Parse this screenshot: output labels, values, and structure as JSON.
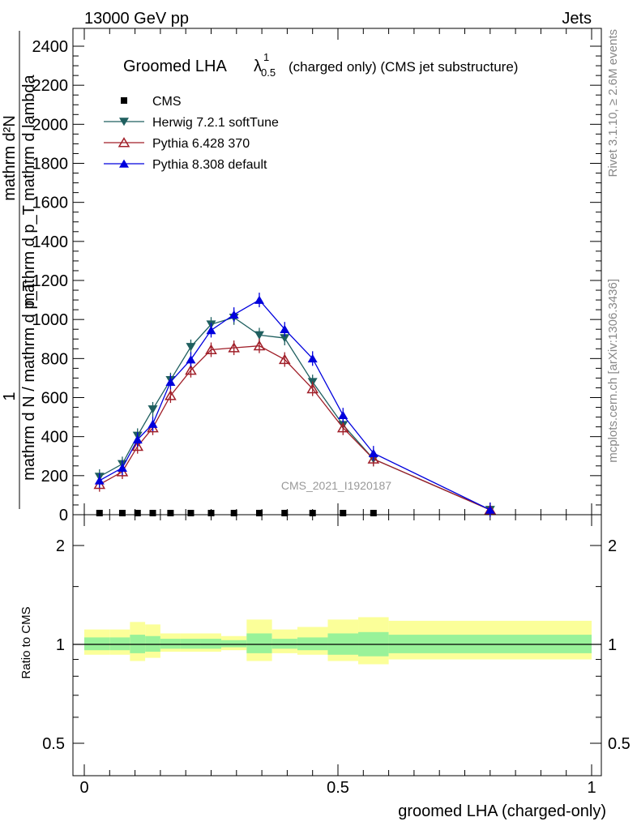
{
  "header": {
    "energy": "13000 GeV pp",
    "process": "Jets",
    "rivet_version": "Rivet 3.1.10, ≥ 2.6M events",
    "source": "mcplots.cern.ch [arXiv:1306.3436]",
    "analysis_id": "CMS_2021_I1920187"
  },
  "chart_data": {
    "type": "line",
    "title": "Groomed LHA",
    "title_symbol": "λ",
    "title_sup": "1",
    "title_sub": "0.5",
    "title_suffix": "(charged only) (CMS jet substructure)",
    "ylabel_top": "mathrm d²N",
    "ylabel_lines": [
      "mathrm d p_T mathrm d lambda",
      "mathrm d N / mathrm d p_T"
    ],
    "ylabel_frac_prefix": "1",
    "xlabel": "groomed LHA (charged-only)",
    "ratio_ylabel": "Ratio to CMS",
    "xlim": [
      0,
      1
    ],
    "ylim": [
      0,
      2500
    ],
    "ratio_ylim": [
      0.4,
      2.4
    ],
    "yticks": [
      0,
      200,
      400,
      600,
      800,
      1000,
      1200,
      1400,
      1600,
      1800,
      2000,
      2200,
      2400
    ],
    "xticks": [
      {
        "v": 0,
        "label": "0"
      },
      {
        "v": 0.5,
        "label": "0.5"
      },
      {
        "v": 1,
        "label": "1"
      }
    ],
    "ratio_ticks": [
      {
        "v": 0.5,
        "label": "0.5"
      },
      {
        "v": 1,
        "label": "1"
      },
      {
        "v": 2,
        "label": "2"
      }
    ],
    "legend_position": "top-left",
    "series": [
      {
        "name": "CMS",
        "marker": "square",
        "color": "#000000",
        "x": [
          0.03,
          0.075,
          0.105,
          0.135,
          0.17,
          0.21,
          0.25,
          0.295,
          0.345,
          0.395,
          0.45,
          0.51,
          0.57
        ],
        "y": [
          0,
          0,
          0,
          0,
          0,
          0,
          0,
          0,
          0,
          0,
          0,
          0,
          0
        ]
      },
      {
        "name": "Herwig 7.2.1 softTune",
        "marker": "triangle-down",
        "color": "#1f5f5f",
        "x": [
          0.03,
          0.075,
          0.105,
          0.135,
          0.17,
          0.21,
          0.25,
          0.295,
          0.345,
          0.395,
          0.45,
          0.51,
          0.57,
          0.8
        ],
        "y": [
          195,
          260,
          405,
          540,
          690,
          860,
          975,
          1010,
          920,
          905,
          680,
          460,
          285,
          25
        ]
      },
      {
        "name": "Pythia 6.428 370",
        "marker": "triangle-up-open",
        "color": "#a01e28",
        "x": [
          0.03,
          0.075,
          0.105,
          0.135,
          0.17,
          0.21,
          0.25,
          0.295,
          0.345,
          0.395,
          0.45,
          0.51,
          0.57,
          0.8
        ],
        "y": [
          155,
          220,
          350,
          445,
          610,
          740,
          845,
          855,
          865,
          795,
          645,
          445,
          285,
          25
        ]
      },
      {
        "name": "Pythia 8.308 default",
        "marker": "triangle-up",
        "color": "#0000dd",
        "x": [
          0.03,
          0.075,
          0.105,
          0.135,
          0.17,
          0.21,
          0.25,
          0.295,
          0.345,
          0.395,
          0.45,
          0.51,
          0.57,
          0.8
        ],
        "y": [
          175,
          240,
          385,
          465,
          680,
          795,
          945,
          1025,
          1100,
          950,
          800,
          510,
          315,
          25
        ]
      }
    ],
    "ratio_bands": {
      "edges": [
        0.0,
        0.05,
        0.09,
        0.12,
        0.15,
        0.19,
        0.23,
        0.27,
        0.32,
        0.37,
        0.42,
        0.48,
        0.54,
        0.6,
        1.0
      ],
      "inner": [
        [
          0.96,
          1.05
        ],
        [
          0.96,
          1.05
        ],
        [
          0.94,
          1.07
        ],
        [
          0.95,
          1.06
        ],
        [
          0.97,
          1.04
        ],
        [
          0.97,
          1.04
        ],
        [
          0.97,
          1.04
        ],
        [
          0.98,
          1.03
        ],
        [
          0.94,
          1.08
        ],
        [
          0.97,
          1.04
        ],
        [
          0.96,
          1.05
        ],
        [
          0.93,
          1.08
        ],
        [
          0.92,
          1.09
        ],
        [
          0.94,
          1.07
        ]
      ],
      "outer": [
        [
          0.93,
          1.11
        ],
        [
          0.93,
          1.11
        ],
        [
          0.89,
          1.17
        ],
        [
          0.91,
          1.15
        ],
        [
          0.95,
          1.08
        ],
        [
          0.95,
          1.08
        ],
        [
          0.95,
          1.08
        ],
        [
          0.96,
          1.06
        ],
        [
          0.89,
          1.19
        ],
        [
          0.94,
          1.11
        ],
        [
          0.93,
          1.13
        ],
        [
          0.89,
          1.19
        ],
        [
          0.87,
          1.21
        ],
        [
          0.9,
          1.18
        ]
      ]
    },
    "ratio_band_colors": {
      "inner": "#99f299",
      "outer": "#fbff99"
    }
  }
}
